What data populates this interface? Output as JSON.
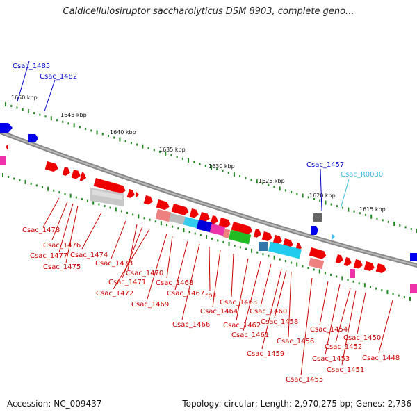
{
  "title": "Caldicellulosiruptor saccharolyticus DSM 8903, complete geno...",
  "footer": {
    "accession": "Accession: NC_009437",
    "summary": "Topology: circular; Length: 2,970,275 bp; Genes: 2,736"
  },
  "ruler_labels": [
    "1650 kbp",
    "1645 kbp",
    "1640 kbp",
    "1635 kbp",
    "1630 kbp",
    "1625 kbp",
    "1620 kbp",
    "1615 kbp"
  ],
  "top_gene_labels": [
    {
      "text": "Csac_1485",
      "color": "#0000cc"
    },
    {
      "text": "Csac_1482",
      "color": "#0000cc"
    },
    {
      "text": "Csac_1457",
      "color": "#0000cc"
    },
    {
      "text": "Csac_R0030",
      "color": "#33bbdd"
    }
  ],
  "bottom_gene_labels": [
    "Csac_1478",
    "Csac_1476",
    "Csac_1477",
    "Csac_1475",
    "Csac_1474",
    "Csac_1473",
    "Csac_1470",
    "Csac_1471",
    "Csac_1472",
    "Csac_1468",
    "Csac_1469",
    "Csac_1467",
    "rplI",
    "Csac_1466",
    "Csac_1463",
    "Csac_1464",
    "Csac_1462",
    "Csac_1460",
    "Csac_1461",
    "Csac_1458",
    "Csac_1459",
    "Csac_1456",
    "Csac_1455",
    "Csac_1454",
    "Csac_1453",
    "Csac_1452",
    "Csac_1451",
    "Csac_1450",
    "Csac_1448"
  ],
  "colors": {
    "gene_forward": "#ee0000",
    "label_red": "#cc0000",
    "label_blue": "#0000cc",
    "label_cyan": "#33bbdd",
    "backbone": "#777777",
    "ticks": "#228822"
  }
}
